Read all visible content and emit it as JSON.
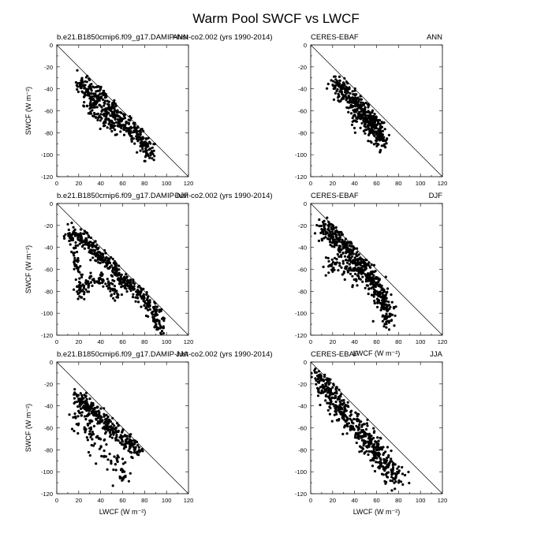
{
  "figure": {
    "title": "Warm Pool SWCF vs LWCF"
  },
  "chart_data": [
    {
      "type": "scatter",
      "left_title": "b.e21.B1850cmip6.f09_g17.DAMIP-hist-co2.002 (yrs 1990-2014)",
      "right_title": "ANN",
      "xlabel": "",
      "ylabel": "SWCF (W m⁻²)",
      "xlim": [
        0,
        120
      ],
      "ylim": [
        -120,
        0
      ],
      "xticks": [
        0,
        20,
        40,
        60,
        80,
        100,
        120
      ],
      "yticks": [
        0,
        -20,
        -40,
        -60,
        -80,
        -100,
        -120
      ],
      "reference_line": [
        [
          0,
          0
        ],
        [
          120,
          -120
        ]
      ],
      "clusters": [
        {
          "x": [
            [
              20,
              -34
            ],
            [
              30,
              -42
            ],
            [
              40,
              -50
            ],
            [
              50,
              -60
            ],
            [
              60,
              -70
            ],
            [
              70,
              -79
            ],
            [
              80,
              -90
            ],
            [
              85,
              -100
            ]
          ],
          "spread": 5,
          "n": 420,
          "seed": 11
        },
        {
          "x": [
            [
              25,
              -55
            ],
            [
              35,
              -62
            ],
            [
              45,
              -70
            ],
            [
              55,
              -78
            ]
          ],
          "spread": 4,
          "n": 60,
          "seed": 12
        }
      ]
    },
    {
      "type": "scatter",
      "left_title": "CERES-EBAF",
      "right_title": "ANN",
      "xlabel": "",
      "ylabel": "",
      "xlim": [
        0,
        120
      ],
      "ylim": [
        -120,
        0
      ],
      "xticks": [
        0,
        20,
        40,
        60,
        80,
        100,
        120
      ],
      "yticks": [
        0,
        -20,
        -40,
        -60,
        -80,
        -100,
        -120
      ],
      "reference_line": [
        [
          0,
          0
        ],
        [
          120,
          -120
        ]
      ],
      "clusters": [
        {
          "x": [
            [
              22,
              -35
            ],
            [
              30,
              -42
            ],
            [
              40,
              -52
            ],
            [
              48,
              -60
            ],
            [
              55,
              -70
            ],
            [
              62,
              -80
            ],
            [
              68,
              -90
            ]
          ],
          "spread": 5,
          "n": 380,
          "seed": 21
        },
        {
          "x": [
            [
              40,
              -65
            ],
            [
              50,
              -72
            ],
            [
              60,
              -75
            ],
            [
              65,
              -85
            ]
          ],
          "spread": 5,
          "n": 90,
          "seed": 22
        }
      ]
    },
    {
      "type": "scatter",
      "left_title": "b.e21.B1850cmip6.f09_g17.DAMIP-hist-co2.002 (yrs 1990-2014)",
      "right_title": "DJF",
      "xlabel": "",
      "ylabel": "SWCF (W m⁻²)",
      "xlim": [
        0,
        120
      ],
      "ylim": [
        -120,
        0
      ],
      "xticks": [
        0,
        20,
        40,
        60,
        80,
        100,
        120
      ],
      "yticks": [
        0,
        -20,
        -40,
        -60,
        -80,
        -100,
        -120
      ],
      "reference_line": [
        [
          0,
          0
        ],
        [
          120,
          -120
        ]
      ],
      "clusters": [
        {
          "x": [
            [
              10,
              -28
            ],
            [
              20,
              -30
            ],
            [
              30,
              -38
            ],
            [
              40,
              -48
            ],
            [
              50,
              -58
            ],
            [
              60,
              -68
            ],
            [
              70,
              -78
            ],
            [
              80,
              -88
            ],
            [
              90,
              -100
            ],
            [
              95,
              -115
            ]
          ],
          "spread": 4,
          "n": 460,
          "seed": 31
        },
        {
          "x": [
            [
              15,
              -40
            ],
            [
              18,
              -55
            ],
            [
              20,
              -70
            ],
            [
              22,
              -85
            ],
            [
              30,
              -70
            ],
            [
              40,
              -70
            ],
            [
              50,
              -75
            ],
            [
              55,
              -85
            ]
          ],
          "spread": 3,
          "n": 160,
          "seed": 32
        }
      ]
    },
    {
      "type": "scatter",
      "left_title": "CERES-EBAF",
      "right_title": "DJF",
      "xlabel": "LWCF (W m⁻²)",
      "ylabel": "",
      "xlim": [
        0,
        120
      ],
      "ylim": [
        -120,
        0
      ],
      "xticks": [
        0,
        20,
        40,
        60,
        80,
        100,
        120
      ],
      "yticks": [
        0,
        -20,
        -40,
        -60,
        -80,
        -100,
        -120
      ],
      "reference_line": [
        [
          0,
          0
        ],
        [
          120,
          -120
        ]
      ],
      "clusters": [
        {
          "x": [
            [
              10,
              -22
            ],
            [
              20,
              -28
            ],
            [
              30,
              -38
            ],
            [
              40,
              -50
            ],
            [
              50,
              -62
            ],
            [
              60,
              -75
            ],
            [
              68,
              -90
            ],
            [
              70,
              -110
            ]
          ],
          "spread": 5,
          "n": 520,
          "seed": 41
        },
        {
          "x": [
            [
              15,
              -60
            ],
            [
              25,
              -55
            ],
            [
              35,
              -60
            ],
            [
              45,
              -70
            ]
          ],
          "spread": 5,
          "n": 80,
          "seed": 42
        }
      ]
    },
    {
      "type": "scatter",
      "left_title": "b.e21.B1850cmip6.f09_g17.DAMIP-hist-co2.002 (yrs 1990-2014)",
      "right_title": "JJA",
      "xlabel": "LWCF (W m⁻²)",
      "ylabel": "SWCF (W m⁻²)",
      "xlim": [
        0,
        120
      ],
      "ylim": [
        -120,
        0
      ],
      "xticks": [
        0,
        20,
        40,
        60,
        80,
        100,
        120
      ],
      "yticks": [
        0,
        -20,
        -40,
        -60,
        -80,
        -100,
        -120
      ],
      "reference_line": [
        [
          0,
          0
        ],
        [
          120,
          -120
        ]
      ],
      "clusters": [
        {
          "x": [
            [
              18,
              -32
            ],
            [
              25,
              -38
            ],
            [
              35,
              -46
            ],
            [
              45,
              -55
            ],
            [
              55,
              -65
            ],
            [
              65,
              -75
            ],
            [
              75,
              -82
            ]
          ],
          "spread": 4,
          "n": 300,
          "seed": 51
        },
        {
          "x": [
            [
              18,
              -45
            ],
            [
              25,
              -60
            ],
            [
              35,
              -70
            ],
            [
              45,
              -80
            ],
            [
              55,
              -95
            ],
            [
              60,
              -105
            ]
          ],
          "spread": 6,
          "n": 110,
          "seed": 52
        }
      ]
    },
    {
      "type": "scatter",
      "left_title": "CERES-EBAF",
      "right_title": "JJA",
      "xlabel": "LWCF (W m⁻²)",
      "ylabel": "",
      "xlim": [
        0,
        120
      ],
      "ylim": [
        -120,
        0
      ],
      "xticks": [
        0,
        20,
        40,
        60,
        80,
        100,
        120
      ],
      "yticks": [
        0,
        -20,
        -40,
        -60,
        -80,
        -100,
        -120
      ],
      "reference_line": [
        [
          0,
          0
        ],
        [
          120,
          -120
        ]
      ],
      "clusters": [
        {
          "x": [
            [
              8,
              -12
            ],
            [
              15,
              -25
            ],
            [
              22,
              -38
            ],
            [
              30,
              -48
            ],
            [
              40,
              -58
            ],
            [
              50,
              -70
            ],
            [
              60,
              -82
            ],
            [
              70,
              -95
            ],
            [
              80,
              -108
            ]
          ],
          "spread": 6,
          "n": 520,
          "seed": 61
        }
      ]
    }
  ]
}
